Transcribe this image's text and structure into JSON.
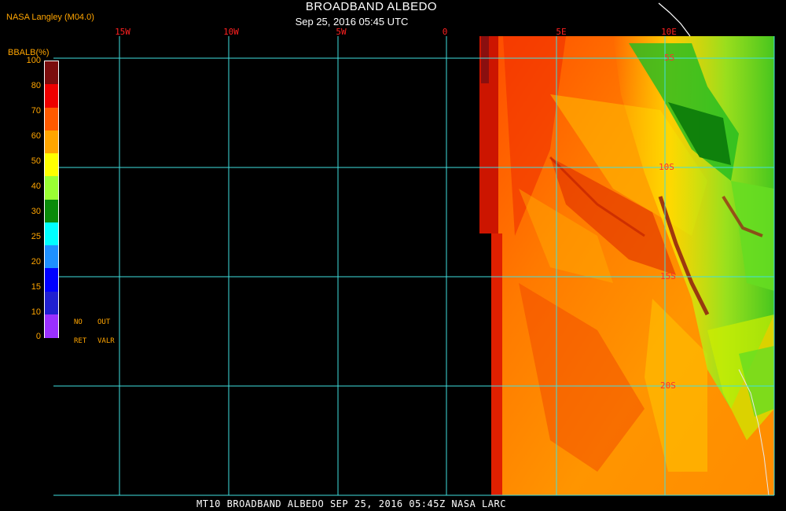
{
  "header": {
    "producer": "NASA Langley (M04.0)",
    "title": "BROADBAND ALBEDO",
    "subtitle": "Sep 25, 2016 05:45 UTC"
  },
  "footer": {
    "caption": "MT10  BROADBAND ALBEDO  SEP 25, 2016 05:45Z  NASA LARC"
  },
  "legend": {
    "title": "BBALB(%)",
    "ticks": [
      "100",
      "80",
      "70",
      "60",
      "50",
      "40",
      "30",
      "25",
      "20",
      "15",
      "10",
      "0"
    ],
    "colors": [
      "#7a0d0d",
      "#ee0000",
      "#ff5a00",
      "#ffa500",
      "#ffff00",
      "#9aff33",
      "#0a8a0a",
      "#00ffff",
      "#1e90ff",
      "#0000ff",
      "#2020d0",
      "#9a30ff"
    ],
    "notes": [
      "NO",
      "OUT",
      "RET",
      "VALR"
    ]
  },
  "map": {
    "grid_color": "#40e0e0",
    "longitude_labels": [
      "15W",
      "10W",
      "5W",
      "0",
      "5E",
      "10E"
    ],
    "latitude_labels": [
      "5S",
      "10S",
      "15S",
      "20S"
    ]
  }
}
